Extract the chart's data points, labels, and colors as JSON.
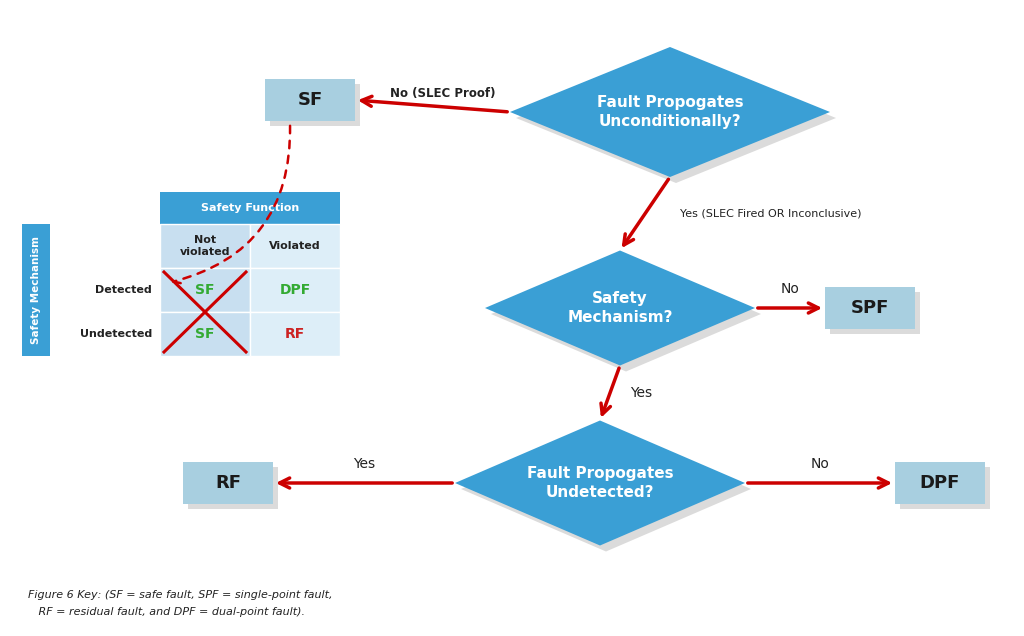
{
  "bg_color": "#ffffff",
  "diamond_color": "#3a9fd5",
  "box_color": "#a8cfe0",
  "table_header_color": "#3a9fd5",
  "table_cell_light": "#c8dff0",
  "table_cell_white": "#ddeef8",
  "sidebar_color": "#3a9fd5",
  "arrow_color": "#cc0000",
  "green_text": "#33aa33",
  "red_text": "#cc2222",
  "black_text": "#222222",
  "white_text": "#ffffff",
  "diamond1_text": "Fault Propogates\nUnconditionally?",
  "diamond2_text": "Safety\nMechanism?",
  "diamond3_text": "Fault Propogates\nUndetected?",
  "box_sf_text": "SF",
  "box_spf_text": "SPF",
  "box_rf_text": "RF",
  "box_dpf_text": "DPF",
  "label_no_slec": "No (SLEC Proof)",
  "label_yes_slec": "Yes (SLEC Fired OR Inconclusive)",
  "label_no2": "No",
  "label_yes2": "Yes",
  "label_no3": "No",
  "label_yes3": "Yes",
  "caption_line1": "Figure 6 Key: (SF = safe fault, SPF = single-point fault,",
  "caption_line2": "   RF = residual fault, and DPF = dual-point fault).",
  "table_title": "Safety Function",
  "col1_header": "Not\nviolated",
  "col2_header": "Violated",
  "row1_label": "Detected",
  "row2_label": "Undetected",
  "cell_detected_not": "SF",
  "cell_detected_vio": "DPF",
  "cell_undetected_not": "SF",
  "cell_undetected_vio": "RF",
  "sidebar_label": "Safety Mechanism"
}
